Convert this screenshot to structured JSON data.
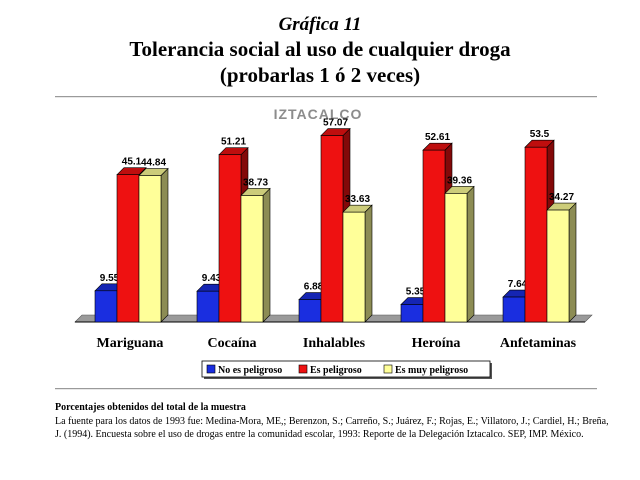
{
  "heading": {
    "number": "Gráfica 11",
    "title_line1": "Tolerancia social al uso de cualquier droga",
    "title_line2": "(probarlas 1 ó 2 veces)"
  },
  "chart_data": {
    "type": "bar",
    "title": "IZTACALCO",
    "categories": [
      "Mariguana",
      "Cocaína",
      "Inhalables",
      "Heroína",
      "Anfetaminas"
    ],
    "series": [
      {
        "name": "No es peligroso",
        "values": [
          9.55,
          9.43,
          6.88,
          5.35,
          7.64
        ],
        "color": "#1a2ee0",
        "label_texts": [
          "9.55",
          "9.43",
          "6.88",
          "5.35",
          "7.64"
        ]
      },
      {
        "name": "Es peligroso",
        "values": [
          45.1,
          51.21,
          57.07,
          52.61,
          53.5
        ],
        "color": "#ee1111",
        "label_texts": [
          "45.1",
          "51.21",
          "57.07",
          "52.61",
          "53.5"
        ]
      },
      {
        "name": "Es muy peligroso",
        "values": [
          44.84,
          38.73,
          33.63,
          39.36,
          34.27
        ],
        "color": "#ffff99",
        "label_texts": [
          "44.84",
          "38.73",
          "33.63",
          "39.36",
          "34.27"
        ]
      }
    ],
    "ylim": [
      0,
      60
    ],
    "grid": false,
    "legend_position": "bottom",
    "style": "3d-column"
  },
  "footer": {
    "heading": "Porcentajes obtenidos del total de la muestra",
    "body": "La fuente para los datos de 1993 fue: Medina-Mora, ME,; Berenzon, S.; Carreño, S.; Juárez, F.; Rojas, E.; Villatoro, J.; Cardiel, H.; Breña, J. (1994). Encuesta sobre el uso de drogas entre la comunidad escolar, 1993: Reporte de la Delegación Iztacalco. SEP, IMP. México."
  }
}
